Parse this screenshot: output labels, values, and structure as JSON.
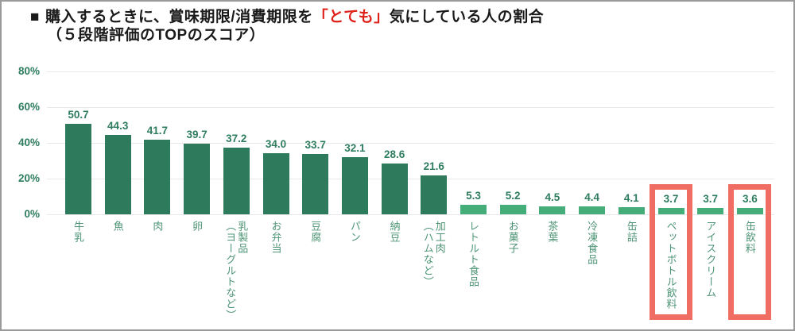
{
  "title": {
    "bullet": "■",
    "line1_before": "購入するときに、賞味期限/消費期限を",
    "line1_highlight": "「とても」",
    "line1_after": "気にしている人の割合",
    "line2": "（５段階評価のTOPのスコア）"
  },
  "colors": {
    "bar_dark": "#2d7a5c",
    "bar_light": "#45ad79",
    "value_label": "#2f7d5f",
    "category_label": "#4e9476",
    "highlight_box": "#ef6d62",
    "title_highlight": "#df2019",
    "gridline": "#e8e8e8",
    "frame_border": "#9a9a9a"
  },
  "chart_data": {
    "type": "bar",
    "title": "■ 購入するときに、賞味期限/消費期限を「とても」気にしている人の割合（５段階評価のTOPのスコア）",
    "categories": [
      "牛乳",
      "魚",
      "肉",
      "卵",
      "乳製品\n（ヨーグルトなど）",
      "お弁当",
      "豆腐",
      "パン",
      "納豆",
      "加工肉\n（ハムなど）",
      "レトルト食品",
      "お菓子",
      "茶葉",
      "冷凍食品",
      "缶詰",
      "ペットボトル飲料",
      "アイスクリーム",
      "缶飲料"
    ],
    "values": [
      50.7,
      44.3,
      41.7,
      39.7,
      37.2,
      34.0,
      33.7,
      32.1,
      28.6,
      21.6,
      5.3,
      5.2,
      4.5,
      4.4,
      4.1,
      3.7,
      3.7,
      3.6
    ],
    "value_labels": [
      "50.7",
      "44.3",
      "41.7",
      "39.7",
      "37.2",
      "34.0",
      "33.7",
      "32.1",
      "28.6",
      "21.6",
      "5.3",
      "5.2",
      "4.5",
      "4.4",
      "4.1",
      "3.7",
      "3.7",
      "3.6"
    ],
    "dark_bar_count": 10,
    "xlabel": "",
    "ylabel": "",
    "ylim": [
      0,
      80
    ],
    "grid": true,
    "legend": "none",
    "yticks": [
      {
        "label": "80%",
        "value": 80
      },
      {
        "label": "60%",
        "value": 60
      },
      {
        "label": "40%",
        "value": 40
      },
      {
        "label": "20%",
        "value": 20
      },
      {
        "label": "0%",
        "value": 0
      }
    ],
    "highlight_indices": [
      15,
      17
    ],
    "highlighted_categories": [
      "ペットボトル飲料",
      "缶飲料"
    ]
  }
}
